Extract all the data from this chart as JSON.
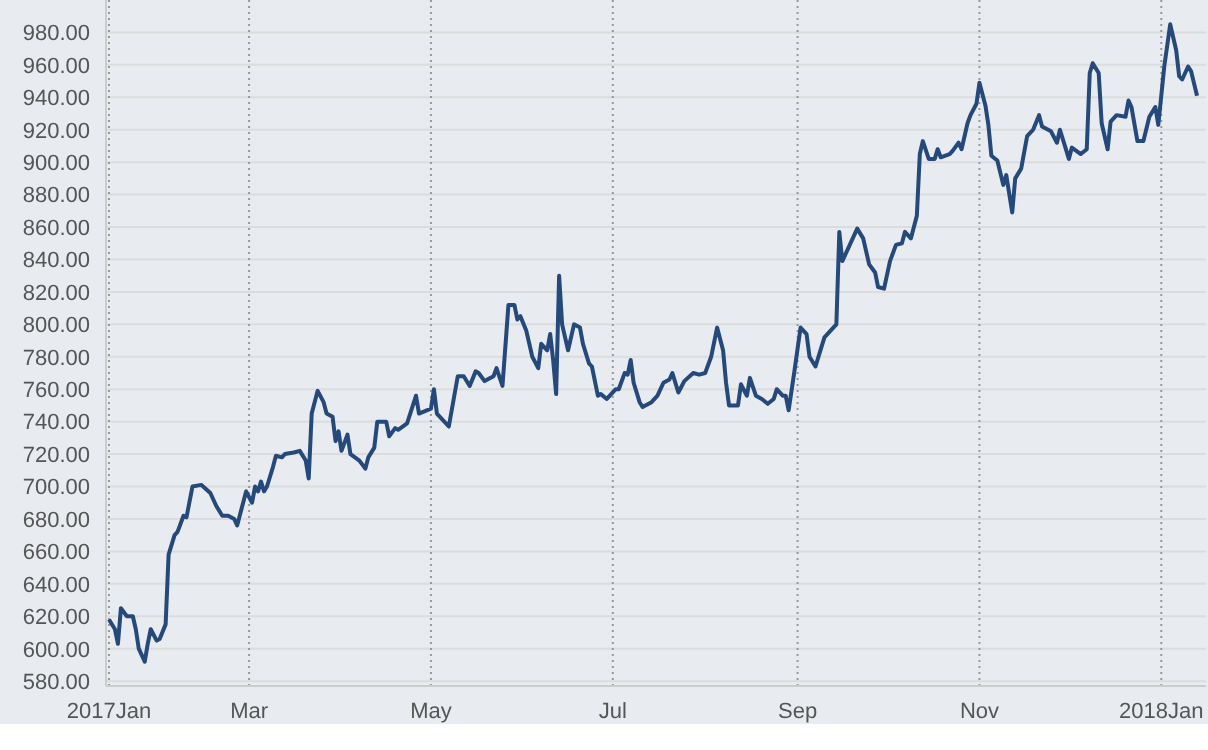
{
  "chart_data": {
    "type": "line",
    "x": [
      "2017-01-13",
      "2017-01-15",
      "2017-01-16",
      "2017-01-17",
      "2017-01-19",
      "2017-01-21",
      "2017-01-22",
      "2017-01-23",
      "2017-01-25",
      "2017-01-26",
      "2017-01-27",
      "2017-01-29",
      "2017-01-30",
      "2017-02-01",
      "2017-02-02",
      "2017-02-04",
      "2017-02-05",
      "2017-02-07",
      "2017-02-08",
      "2017-02-10",
      "2017-02-13",
      "2017-02-16",
      "2017-02-18",
      "2017-02-20",
      "2017-02-22",
      "2017-02-24",
      "2017-02-25",
      "2017-02-27",
      "2017-02-28",
      "2017-03-02",
      "2017-03-03",
      "2017-03-04",
      "2017-03-05",
      "2017-03-06",
      "2017-03-07",
      "2017-03-09",
      "2017-03-10",
      "2017-03-12",
      "2017-03-13",
      "2017-03-16",
      "2017-03-18",
      "2017-03-20",
      "2017-03-21",
      "2017-03-22",
      "2017-03-24",
      "2017-03-26",
      "2017-03-27",
      "2017-03-29",
      "2017-03-30",
      "2017-03-31",
      "2017-04-01",
      "2017-04-03",
      "2017-04-04",
      "2017-04-07",
      "2017-04-09",
      "2017-04-10",
      "2017-04-12",
      "2017-04-13",
      "2017-04-16",
      "2017-04-17",
      "2017-04-19",
      "2017-04-20",
      "2017-04-23",
      "2017-04-26",
      "2017-04-27",
      "2017-05-01",
      "2017-05-02",
      "2017-05-03",
      "2017-05-07",
      "2017-05-10",
      "2017-05-12",
      "2017-05-14",
      "2017-05-16",
      "2017-05-17",
      "2017-05-19",
      "2017-05-22",
      "2017-05-23",
      "2017-05-25",
      "2017-05-27",
      "2017-05-29",
      "2017-05-30",
      "2017-05-31",
      "2017-06-02",
      "2017-06-04",
      "2017-06-06",
      "2017-06-07",
      "2017-06-09",
      "2017-06-10",
      "2017-06-11",
      "2017-06-12",
      "2017-06-13",
      "2017-06-14",
      "2017-06-16",
      "2017-06-18",
      "2017-06-20",
      "2017-06-21",
      "2017-06-23",
      "2017-06-24",
      "2017-06-26",
      "2017-06-27",
      "2017-06-29",
      "2017-07-01",
      "2017-07-02",
      "2017-07-03",
      "2017-07-05",
      "2017-07-06",
      "2017-07-07",
      "2017-07-08",
      "2017-07-10",
      "2017-07-11",
      "2017-07-14",
      "2017-07-16",
      "2017-07-18",
      "2017-07-20",
      "2017-07-21",
      "2017-07-23",
      "2017-07-25",
      "2017-07-28",
      "2017-07-30",
      "2017-08-01",
      "2017-08-03",
      "2017-08-05",
      "2017-08-07",
      "2017-08-08",
      "2017-08-09",
      "2017-08-12",
      "2017-08-13",
      "2017-08-15",
      "2017-08-16",
      "2017-08-18",
      "2017-08-20",
      "2017-08-22",
      "2017-08-24",
      "2017-08-25",
      "2017-08-27",
      "2017-08-28",
      "2017-08-29",
      "2017-08-31",
      "2017-09-02",
      "2017-09-04",
      "2017-09-05",
      "2017-09-07",
      "2017-09-10",
      "2017-09-11",
      "2017-09-14",
      "2017-09-15",
      "2017-09-16",
      "2017-09-18",
      "2017-09-21",
      "2017-09-23",
      "2017-09-25",
      "2017-09-27",
      "2017-09-28",
      "2017-09-30",
      "2017-10-02",
      "2017-10-04",
      "2017-10-06",
      "2017-10-07",
      "2017-10-09",
      "2017-10-11",
      "2017-10-12",
      "2017-10-13",
      "2017-10-15",
      "2017-10-17",
      "2017-10-18",
      "2017-10-19",
      "2017-10-22",
      "2017-10-23",
      "2017-10-25",
      "2017-10-26",
      "2017-10-28",
      "2017-10-29",
      "2017-10-31",
      "2017-11-01",
      "2017-11-03",
      "2017-11-04",
      "2017-11-05",
      "2017-11-07",
      "2017-11-09",
      "2017-11-10",
      "2017-11-12",
      "2017-11-13",
      "2017-11-15",
      "2017-11-17",
      "2017-11-19",
      "2017-11-21",
      "2017-11-22",
      "2017-11-25",
      "2017-11-27",
      "2017-11-28",
      "2017-11-30",
      "2017-12-01",
      "2017-12-02",
      "2017-12-05",
      "2017-12-07",
      "2017-12-08",
      "2017-12-09",
      "2017-12-11",
      "2017-12-12",
      "2017-12-14",
      "2017-12-15",
      "2017-12-17",
      "2017-12-20",
      "2017-12-21",
      "2017-12-22",
      "2017-12-24",
      "2017-12-26",
      "2017-12-28",
      "2017-12-30",
      "2017-12-31",
      "2018-01-02",
      "2018-01-04",
      "2018-01-06",
      "2018-01-07",
      "2018-01-08",
      "2018-01-10",
      "2018-01-11",
      "2018-01-13"
    ],
    "series": [
      {
        "color": "#24497a",
        "values": [
          618,
          612,
          603,
          625,
          620,
          620,
          612,
          600,
          592,
          603,
          612,
          605,
          606,
          615,
          658,
          670,
          672,
          682,
          681,
          700,
          701,
          696,
          688,
          682,
          682,
          680,
          676,
          690,
          697,
          690,
          700,
          697,
          703,
          697,
          700,
          712,
          719,
          718,
          720,
          721,
          722,
          716,
          705,
          745,
          759,
          752,
          745,
          743,
          728,
          734,
          722,
          732,
          720,
          716,
          711,
          718,
          724,
          740,
          740,
          731,
          736,
          735,
          739,
          756,
          745,
          748,
          760,
          745,
          737,
          768,
          768,
          762,
          771,
          770,
          765,
          768,
          773,
          762,
          812,
          812,
          803,
          805,
          796,
          780,
          773,
          788,
          784,
          794,
          778,
          757,
          830,
          800,
          784,
          800,
          798,
          788,
          776,
          774,
          756,
          757,
          754,
          758,
          760,
          760,
          770,
          769,
          778,
          764,
          752,
          749,
          752,
          756,
          764,
          766,
          770,
          758,
          765,
          770,
          769,
          770,
          780,
          798,
          784,
          764,
          750,
          750,
          763,
          756,
          767,
          756,
          754,
          751,
          754,
          760,
          756,
          756,
          747,
          772,
          798,
          794,
          780,
          774,
          792,
          794,
          800,
          857,
          839,
          847,
          859,
          853,
          837,
          832,
          823,
          822,
          839,
          849,
          850,
          857,
          853,
          867,
          905,
          913,
          902,
          902,
          908,
          903,
          905,
          907,
          912,
          908,
          924,
          929,
          936,
          949,
          935,
          923,
          904,
          901,
          886,
          892,
          869,
          890,
          896,
          916,
          920,
          929,
          922,
          919,
          912,
          920,
          908,
          902,
          909,
          905,
          908,
          955,
          961,
          955,
          924,
          908,
          925,
          929,
          928,
          938,
          934,
          913,
          913,
          928,
          934,
          923,
          959,
          985,
          969,
          953,
          951,
          959,
          956,
          941
        ]
      }
    ],
    "xlim": [
      "2017-01-12",
      "2018-01-16"
    ],
    "xticks": [
      {
        "value": "2017-01-13",
        "label": "2017Jan"
      },
      {
        "value": "2017-03-01",
        "label": "Mar"
      },
      {
        "value": "2017-05-01",
        "label": "May"
      },
      {
        "value": "2017-07-01",
        "label": "Jul"
      },
      {
        "value": "2017-09-01",
        "label": "Sep"
      },
      {
        "value": "2017-11-01",
        "label": "Nov"
      },
      {
        "value": "2018-01-01",
        "label": "2018Jan"
      }
    ],
    "ylim": [
      577,
      1000
    ],
    "yticks": [
      {
        "value": 580,
        "label": "580.00"
      },
      {
        "value": 600,
        "label": "600.00"
      },
      {
        "value": 620,
        "label": "620.00"
      },
      {
        "value": 640,
        "label": "640.00"
      },
      {
        "value": 660,
        "label": "660.00"
      },
      {
        "value": 680,
        "label": "680.00"
      },
      {
        "value": 700,
        "label": "700.00"
      },
      {
        "value": 720,
        "label": "720.00"
      },
      {
        "value": 740,
        "label": "740.00"
      },
      {
        "value": 760,
        "label": "760.00"
      },
      {
        "value": 780,
        "label": "780.00"
      },
      {
        "value": 800,
        "label": "800.00"
      },
      {
        "value": 820,
        "label": "820.00"
      },
      {
        "value": 840,
        "label": "840.00"
      },
      {
        "value": 860,
        "label": "860.00"
      },
      {
        "value": 880,
        "label": "880.00"
      },
      {
        "value": 900,
        "label": "900.00"
      },
      {
        "value": 920,
        "label": "920.00"
      },
      {
        "value": 940,
        "label": "940.00"
      },
      {
        "value": 960,
        "label": "960.00"
      },
      {
        "value": 980,
        "label": "980.00"
      }
    ],
    "grid": true,
    "marker": "none",
    "line_style": "solid"
  }
}
